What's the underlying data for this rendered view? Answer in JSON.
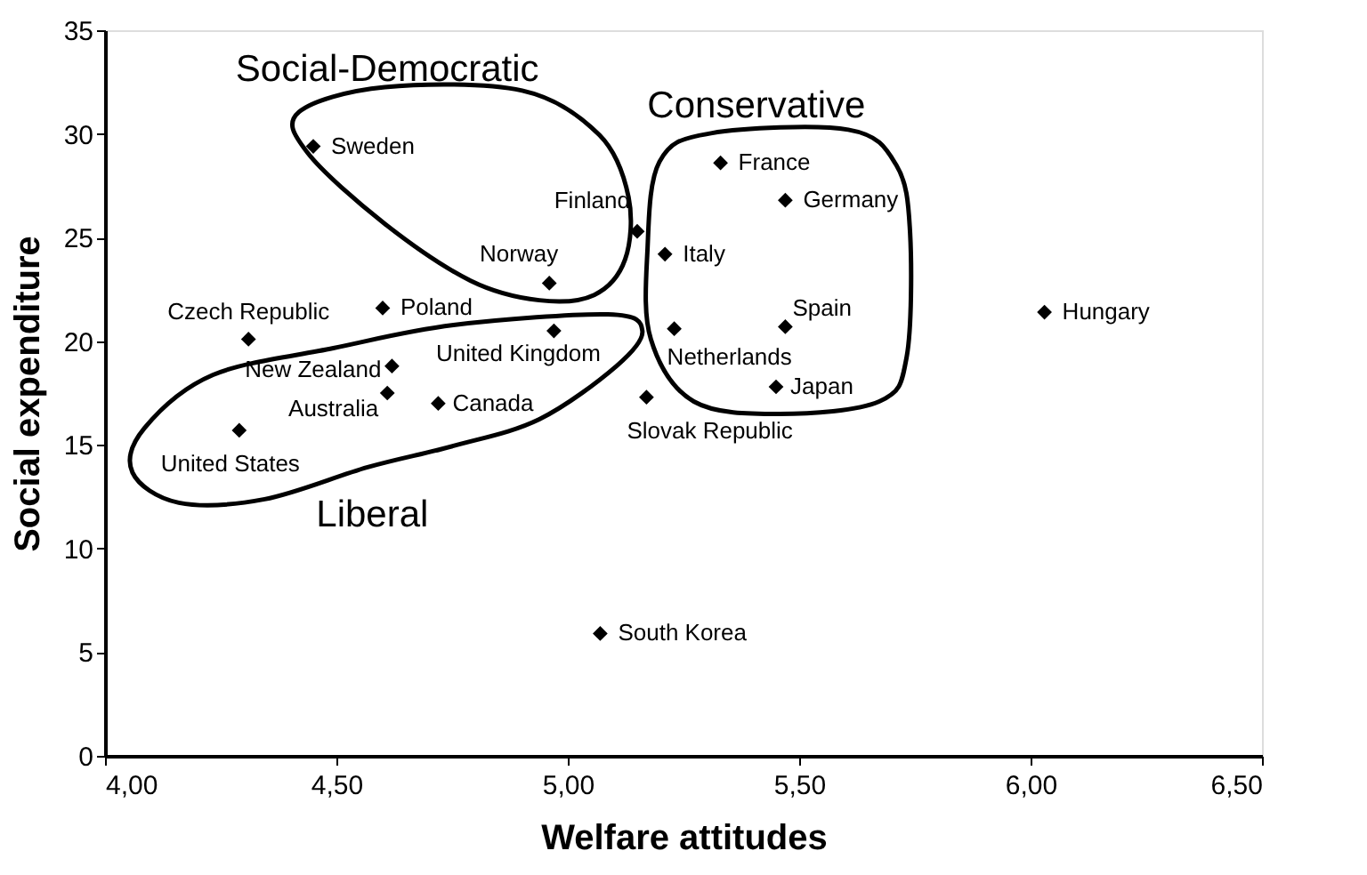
{
  "chart_data": {
    "type": "scatter",
    "xlabel": "Welfare attitudes",
    "ylabel": "Social expenditure",
    "x": [
      4.45,
      5.15,
      4.96,
      4.6,
      4.31,
      4.97,
      4.62,
      4.61,
      4.72,
      4.29,
      5.33,
      5.47,
      5.21,
      5.47,
      5.23,
      5.45,
      5.17,
      6.03,
      5.07
    ],
    "values": [
      29.4,
      25.3,
      22.8,
      21.6,
      20.1,
      20.5,
      18.8,
      17.5,
      17.0,
      15.7,
      28.6,
      26.8,
      24.2,
      20.7,
      20.6,
      17.8,
      17.3,
      21.4,
      5.9
    ],
    "color": "#000000",
    "marker": "diamond",
    "xlim": [
      4.0,
      6.5
    ],
    "xticks": [
      {
        "value": 4.0,
        "label": "4,00"
      },
      {
        "value": 4.5,
        "label": "4,50"
      },
      {
        "value": 5.0,
        "label": "5,00"
      },
      {
        "value": 5.5,
        "label": "5,50"
      },
      {
        "value": 6.0,
        "label": "6,00"
      },
      {
        "value": 6.5,
        "label": "6,50"
      }
    ],
    "ylim": [
      0,
      35
    ],
    "yticks": [
      0,
      5,
      10,
      15,
      20,
      25,
      30,
      35
    ],
    "grid": false,
    "annotations": [
      {
        "text": "Sweden",
        "x": 4.45,
        "y": 29.4
      },
      {
        "text": "Finland",
        "x": 5.15,
        "y": 25.3
      },
      {
        "text": "Norway",
        "x": 4.96,
        "y": 22.8
      },
      {
        "text": "Poland",
        "x": 4.6,
        "y": 21.6
      },
      {
        "text": "Czech Republic",
        "x": 4.31,
        "y": 20.1
      },
      {
        "text": "United Kingdom",
        "x": 4.97,
        "y": 20.5
      },
      {
        "text": "New Zealand",
        "x": 4.62,
        "y": 18.8
      },
      {
        "text": "Australia",
        "x": 4.61,
        "y": 17.5
      },
      {
        "text": "Canada",
        "x": 4.72,
        "y": 17.0
      },
      {
        "text": "United States",
        "x": 4.29,
        "y": 15.7
      },
      {
        "text": "France",
        "x": 5.33,
        "y": 28.6
      },
      {
        "text": "Germany",
        "x": 5.47,
        "y": 26.8
      },
      {
        "text": "Italy",
        "x": 5.21,
        "y": 24.2
      },
      {
        "text": "Spain",
        "x": 5.47,
        "y": 20.7
      },
      {
        "text": "Netherlands",
        "x": 5.23,
        "y": 20.6
      },
      {
        "text": "Japan",
        "x": 5.45,
        "y": 17.8
      },
      {
        "text": "Slovak Republic",
        "x": 5.17,
        "y": 17.3
      },
      {
        "text": "Hungary",
        "x": 6.03,
        "y": 21.4
      },
      {
        "text": "South Korea",
        "x": 5.07,
        "y": 5.9
      },
      "Social-Democratic",
      "Conservative",
      "Liberal"
    ]
  }
}
